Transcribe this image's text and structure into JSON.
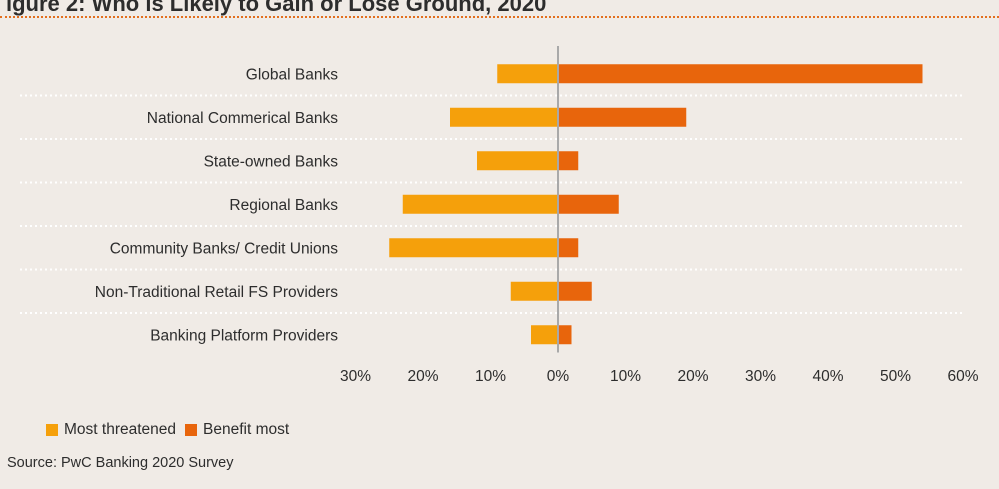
{
  "title": "igure 2: Who is Likely to Gain or Lose Ground, 2020",
  "source": "Source: PwC Banking 2020 Survey",
  "colors": {
    "most_threatened": "#f5a00b",
    "benefit_most": "#e8650c",
    "axis": "#a9a9a9",
    "separator": "#ffffff"
  },
  "chart_data": {
    "type": "bar",
    "orientation": "horizontal",
    "categories": [
      "Global Banks",
      "National Commerical Banks",
      "State-owned Banks",
      "Regional Banks",
      "Community Banks/ Credit Unions",
      "Non-Traditional Retail FS Providers",
      "Banking Platform Providers"
    ],
    "series": [
      {
        "name": "Most threatened",
        "values": [
          -9,
          -16,
          -12,
          -23,
          -25,
          -7,
          -4
        ]
      },
      {
        "name": "Benefit most",
        "values": [
          54,
          19,
          3,
          9,
          3,
          5,
          2
        ]
      }
    ],
    "xlim": [
      -30,
      60
    ],
    "xticks": [
      -30,
      -20,
      -10,
      0,
      10,
      20,
      30,
      40,
      50,
      60
    ],
    "tick_labels": [
      "30%",
      "20%",
      "10%",
      "0%",
      "10%",
      "20%",
      "30%",
      "40%",
      "50%",
      "60%"
    ],
    "grid": false,
    "legend_position": "bottom-left"
  }
}
